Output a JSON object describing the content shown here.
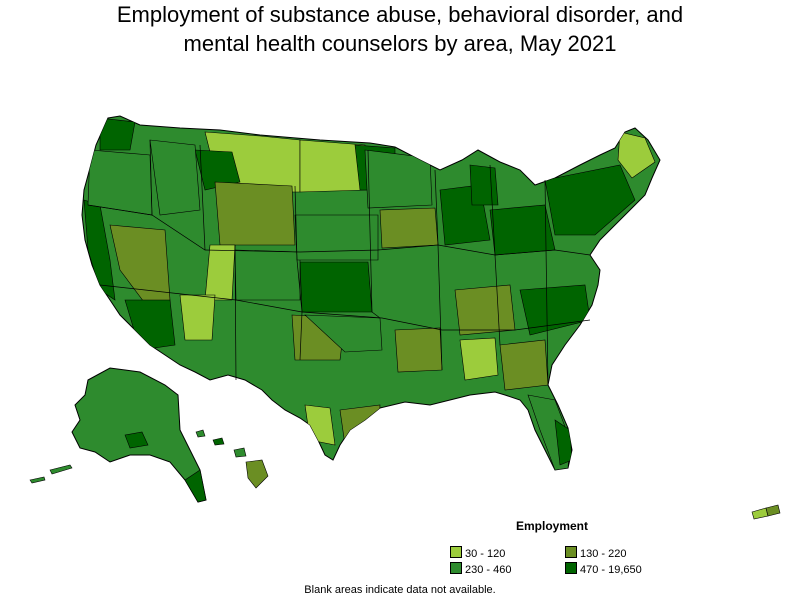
{
  "title": {
    "line1": "Employment of substance abuse, behavioral disorder, and",
    "line2": "mental health counselors by area, May 2021"
  },
  "legend": {
    "title": "Employment",
    "items": [
      {
        "label": "30 - 120",
        "color": "#9ccc3c"
      },
      {
        "label": "130 - 220",
        "color": "#6b8e23"
      },
      {
        "label": "230 - 460",
        "color": "#2e8b2e"
      },
      {
        "label": "470 - 19,650",
        "color": "#006400"
      }
    ]
  },
  "footnote": "Blank areas indicate data not available.",
  "map": {
    "regions": [
      "contiguous-us",
      "alaska",
      "hawaii",
      "puerto-rico"
    ],
    "border_color": "#000000"
  }
}
